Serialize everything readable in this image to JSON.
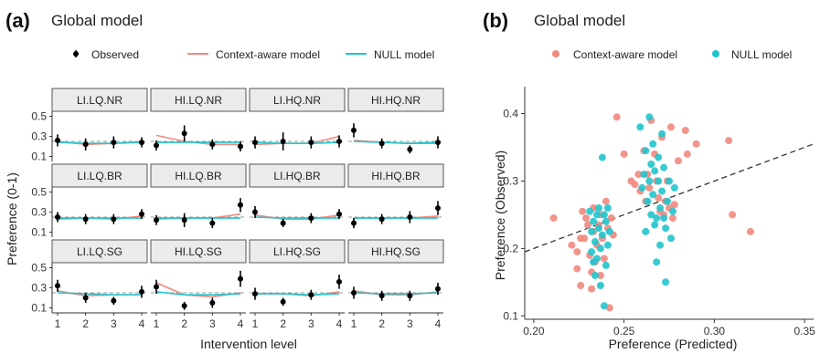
{
  "colors": {
    "context": "#F08A80",
    "null": "#22C4CC",
    "observed": "#000000",
    "strip_fill": "#EBEBEB",
    "strip_border": "#555555",
    "axis": "#333333",
    "ref_line": "#999999",
    "diag_line": "#333333"
  },
  "chart_data": [
    {
      "type": "line",
      "panel_label": "(a)",
      "title": "Global model",
      "legend": [
        {
          "name": "Observed",
          "kind": "point",
          "color_key": "observed"
        },
        {
          "name": "Context-aware model",
          "kind": "line",
          "color_key": "context"
        },
        {
          "name": "NULL model",
          "kind": "line",
          "color_key": "null"
        }
      ],
      "xlabel": "Intervention level",
      "ylabel": "Preference (0-1)",
      "x": [
        1,
        2,
        3,
        4
      ],
      "xticks": [
        "1",
        "2",
        "3",
        "4"
      ],
      "ylim": [
        0.05,
        0.55
      ],
      "yticks": [
        0.1,
        0.3,
        0.5
      ],
      "ytick_labels": [
        "0.1",
        "0.3",
        "0.5"
      ],
      "reference_line": 0.25,
      "facets": [
        {
          "label": "LI.LQ.NR",
          "observed": [
            0.26,
            0.22,
            0.24,
            0.24
          ],
          "err": [
            0.06,
            0.06,
            0.06,
            0.05
          ],
          "context": [
            0.25,
            0.22,
            0.23,
            0.25
          ],
          "null": [
            0.24,
            0.23,
            0.23,
            0.24
          ]
        },
        {
          "label": "HI.LQ.NR",
          "observed": [
            0.21,
            0.33,
            0.22,
            0.2
          ],
          "err": [
            0.05,
            0.08,
            0.05,
            0.05
          ],
          "context": [
            0.31,
            0.25,
            0.22,
            0.22
          ],
          "null": [
            0.24,
            0.24,
            0.24,
            0.24
          ]
        },
        {
          "label": "LI.HQ.NR",
          "observed": [
            0.24,
            0.25,
            0.24,
            0.25
          ],
          "err": [
            0.06,
            0.09,
            0.06,
            0.06
          ],
          "context": [
            0.22,
            0.23,
            0.23,
            0.3
          ],
          "null": [
            0.24,
            0.23,
            0.23,
            0.24
          ]
        },
        {
          "label": "HI.HQ.NR",
          "observed": [
            0.36,
            0.23,
            0.17,
            0.24
          ],
          "err": [
            0.07,
            0.05,
            0.04,
            0.06
          ],
          "context": [
            0.26,
            0.24,
            0.23,
            0.23
          ],
          "null": [
            0.25,
            0.24,
            0.23,
            0.24
          ]
        },
        {
          "label": "LI.LQ.BR",
          "observed": [
            0.25,
            0.23,
            0.23,
            0.28
          ],
          "err": [
            0.05,
            0.05,
            0.05,
            0.05
          ],
          "context": [
            0.23,
            0.24,
            0.23,
            0.26
          ],
          "null": [
            0.24,
            0.24,
            0.24,
            0.24
          ]
        },
        {
          "label": "HI.LQ.BR",
          "observed": [
            0.22,
            0.22,
            0.19,
            0.37
          ],
          "err": [
            0.05,
            0.07,
            0.05,
            0.07
          ],
          "context": [
            0.23,
            0.24,
            0.24,
            0.28
          ],
          "null": [
            0.24,
            0.24,
            0.24,
            0.24
          ]
        },
        {
          "label": "LI.HQ.BR",
          "observed": [
            0.3,
            0.19,
            0.24,
            0.28
          ],
          "err": [
            0.06,
            0.04,
            0.05,
            0.05
          ],
          "context": [
            0.27,
            0.23,
            0.23,
            0.27
          ],
          "null": [
            0.25,
            0.24,
            0.24,
            0.24
          ]
        },
        {
          "label": "HI.HQ.BR",
          "observed": [
            0.19,
            0.23,
            0.25,
            0.34
          ],
          "err": [
            0.05,
            0.05,
            0.06,
            0.07
          ],
          "context": [
            0.24,
            0.24,
            0.24,
            0.26
          ],
          "null": [
            0.24,
            0.24,
            0.24,
            0.24
          ]
        },
        {
          "label": "LI.LQ.SG",
          "observed": [
            0.32,
            0.2,
            0.17,
            0.26
          ],
          "err": [
            0.06,
            0.05,
            0.04,
            0.06
          ],
          "context": [
            0.27,
            0.22,
            0.23,
            0.23
          ],
          "null": [
            0.25,
            0.24,
            0.23,
            0.23
          ]
        },
        {
          "label": "HI.LQ.SG",
          "observed": [
            0.31,
            0.12,
            0.15,
            0.39
          ],
          "err": [
            0.07,
            0.04,
            0.05,
            0.08
          ],
          "context": [
            0.35,
            0.23,
            0.21,
            0.25
          ],
          "null": [
            0.26,
            0.23,
            0.23,
            0.24
          ]
        },
        {
          "label": "LI.HQ.SG",
          "observed": [
            0.24,
            0.16,
            0.23,
            0.36
          ],
          "err": [
            0.06,
            0.04,
            0.05,
            0.07
          ],
          "context": [
            0.24,
            0.24,
            0.22,
            0.26
          ],
          "null": [
            0.24,
            0.24,
            0.23,
            0.24
          ]
        },
        {
          "label": "HI.HQ.SG",
          "observed": [
            0.25,
            0.22,
            0.22,
            0.29
          ],
          "err": [
            0.06,
            0.05,
            0.05,
            0.06
          ],
          "context": [
            0.27,
            0.23,
            0.23,
            0.26
          ],
          "null": [
            0.25,
            0.24,
            0.24,
            0.25
          ]
        }
      ]
    },
    {
      "type": "scatter",
      "panel_label": "(b)",
      "title": "Global model",
      "xlabel": "Preference (Predicted)",
      "ylabel": "Preference (Observed)",
      "xlim": [
        0.195,
        0.355
      ],
      "ylim": [
        0.095,
        0.44
      ],
      "xticks": [
        0.2,
        0.25,
        0.3,
        0.35
      ],
      "xtick_labels": [
        "0.20",
        "0.25",
        "0.30",
        "0.35"
      ],
      "yticks": [
        0.1,
        0.2,
        0.3,
        0.4
      ],
      "ytick_labels": [
        "0.1",
        "0.2",
        "0.3",
        "0.4"
      ],
      "identity_line": {
        "from": [
          0.195,
          0.195
        ],
        "to": [
          0.355,
          0.355
        ]
      },
      "legend_position": "top",
      "series": [
        {
          "name": "Context-aware model",
          "color_key": "context",
          "points": [
            [
              0.211,
              0.245
            ],
            [
              0.221,
              0.205
            ],
            [
              0.224,
              0.195
            ],
            [
              0.226,
              0.215
            ],
            [
              0.224,
              0.17
            ],
            [
              0.226,
              0.145
            ],
            [
              0.227,
              0.255
            ],
            [
              0.228,
              0.215
            ],
            [
              0.229,
              0.245
            ],
            [
              0.23,
              0.235
            ],
            [
              0.231,
              0.19
            ],
            [
              0.232,
              0.165
            ],
            [
              0.232,
              0.14
            ],
            [
              0.233,
              0.225
            ],
            [
              0.233,
              0.26
            ],
            [
              0.234,
              0.18
            ],
            [
              0.235,
              0.205
            ],
            [
              0.236,
              0.235
            ],
            [
              0.237,
              0.16
            ],
            [
              0.237,
              0.25
            ],
            [
              0.238,
              0.215
            ],
            [
              0.239,
              0.185
            ],
            [
              0.24,
              0.27
            ],
            [
              0.241,
              0.23
            ],
            [
              0.242,
              0.112
            ],
            [
              0.243,
              0.245
            ],
            [
              0.244,
              0.22
            ],
            [
              0.246,
              0.395
            ],
            [
              0.25,
              0.34
            ],
            [
              0.254,
              0.3
            ],
            [
              0.256,
              0.295
            ],
            [
              0.258,
              0.31
            ],
            [
              0.259,
              0.285
            ],
            [
              0.261,
              0.345
            ],
            [
              0.262,
              0.27
            ],
            [
              0.263,
              0.31
            ],
            [
              0.264,
              0.29
            ],
            [
              0.265,
              0.39
            ],
            [
              0.267,
              0.34
            ],
            [
              0.268,
              0.3
            ],
            [
              0.269,
              0.275
            ],
            [
              0.27,
              0.255
            ],
            [
              0.271,
              0.365
            ],
            [
              0.272,
              0.25
            ],
            [
              0.273,
              0.27
            ],
            [
              0.274,
              0.3
            ],
            [
              0.275,
              0.26
            ],
            [
              0.276,
              0.38
            ],
            [
              0.277,
              0.245
            ],
            [
              0.278,
              0.265
            ],
            [
              0.28,
              0.33
            ],
            [
              0.284,
              0.375
            ],
            [
              0.285,
              0.34
            ],
            [
              0.29,
              0.355
            ],
            [
              0.308,
              0.36
            ],
            [
              0.31,
              0.25
            ],
            [
              0.32,
              0.225
            ]
          ]
        },
        {
          "name": "NULL model",
          "color_key": "null",
          "points": [
            [
              0.231,
              0.255
            ],
            [
              0.232,
              0.225
            ],
            [
              0.232,
              0.195
            ],
            [
              0.233,
              0.18
            ],
            [
              0.233,
              0.24
            ],
            [
              0.234,
              0.16
            ],
            [
              0.234,
              0.21
            ],
            [
              0.235,
              0.25
            ],
            [
              0.235,
              0.185
            ],
            [
              0.236,
              0.26
            ],
            [
              0.236,
              0.23
            ],
            [
              0.237,
              0.145
            ],
            [
              0.237,
              0.2
            ],
            [
              0.238,
              0.335
            ],
            [
              0.238,
              0.22
            ],
            [
              0.239,
              0.25
            ],
            [
              0.239,
              0.115
            ],
            [
              0.24,
              0.175
            ],
            [
              0.24,
              0.24
            ],
            [
              0.241,
              0.26
            ],
            [
              0.241,
              0.205
            ],
            [
              0.242,
              0.225
            ],
            [
              0.259,
              0.38
            ],
            [
              0.26,
              0.29
            ],
            [
              0.261,
              0.31
            ],
            [
              0.262,
              0.225
            ],
            [
              0.262,
              0.345
            ],
            [
              0.263,
              0.27
            ],
            [
              0.264,
              0.395
            ],
            [
              0.264,
              0.3
            ],
            [
              0.265,
              0.25
            ],
            [
              0.265,
              0.325
            ],
            [
              0.266,
              0.355
            ],
            [
              0.266,
              0.28
            ],
            [
              0.267,
              0.235
            ],
            [
              0.267,
              0.315
            ],
            [
              0.268,
              0.18
            ],
            [
              0.268,
              0.245
            ],
            [
              0.269,
              0.335
            ],
            [
              0.269,
              0.3
            ],
            [
              0.27,
              0.26
            ],
            [
              0.27,
              0.205
            ],
            [
              0.271,
              0.37
            ],
            [
              0.271,
              0.285
            ],
            [
              0.272,
              0.245
            ],
            [
              0.272,
              0.32
            ],
            [
              0.273,
              0.23
            ],
            [
              0.273,
              0.15
            ],
            [
              0.274,
              0.27
            ],
            [
              0.275,
              0.3
            ],
            [
              0.276,
              0.215
            ],
            [
              0.277,
              0.255
            ],
            [
              0.278,
              0.29
            ]
          ]
        }
      ]
    }
  ]
}
